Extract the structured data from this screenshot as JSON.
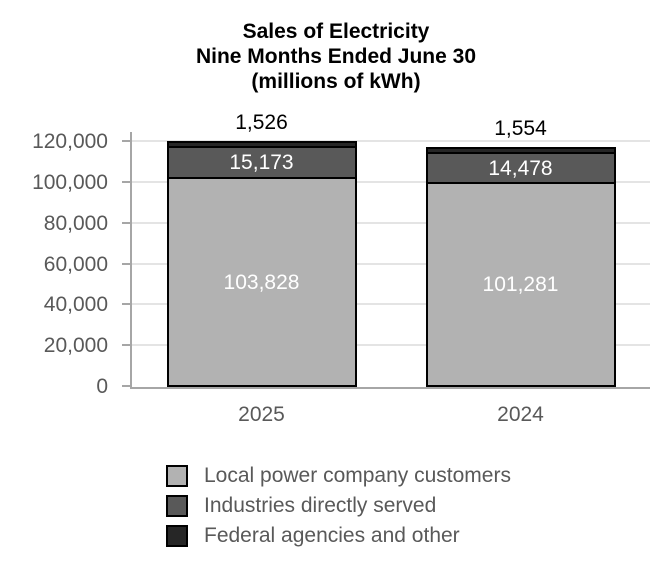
{
  "chart_data": {
    "type": "bar",
    "subtype": "stacked-vertical",
    "title_lines": [
      "Sales of Electricity",
      "Nine Months Ended June 30",
      "(millions of kWh)"
    ],
    "categories": [
      "2025",
      "2024"
    ],
    "series": [
      {
        "name": "Local power company customers",
        "color": "#b2b2b2",
        "values": [
          103828,
          101281
        ],
        "value_labels": [
          "103,828",
          "101,281"
        ],
        "label_color": "#ffffff",
        "label_placement": "inside"
      },
      {
        "name": "Industries directly served",
        "color": "#595959",
        "values": [
          15173,
          14478
        ],
        "value_labels": [
          "15,173",
          "14,478"
        ],
        "label_color": "#ffffff",
        "label_placement": "inside"
      },
      {
        "name": "Federal agencies and other",
        "color": "#262626",
        "values": [
          1526,
          1554
        ],
        "value_labels": [
          "1,526",
          "1,554"
        ],
        "label_color": "#000000",
        "label_placement": "above"
      }
    ],
    "y_axis": {
      "min": 0,
      "max": 120000,
      "tick_step": 20000,
      "gridlines": true,
      "ticks": [
        {
          "value": 0,
          "label": "0"
        },
        {
          "value": 20000,
          "label": "20,000"
        },
        {
          "value": 40000,
          "label": "40,000"
        },
        {
          "value": 60000,
          "label": "60,000"
        },
        {
          "value": 80000,
          "label": "80,000"
        },
        {
          "value": 100000,
          "label": "100,000"
        },
        {
          "value": 120000,
          "label": "120,000"
        }
      ]
    },
    "legend": {
      "position": "bottom"
    },
    "styles": {
      "background": "#ffffff",
      "bar_border": "#000000",
      "axis_line": "#a6a6a6",
      "gridline": "#e4e4e4",
      "tick_label_color": "#595959",
      "title_color": "#000000"
    }
  }
}
